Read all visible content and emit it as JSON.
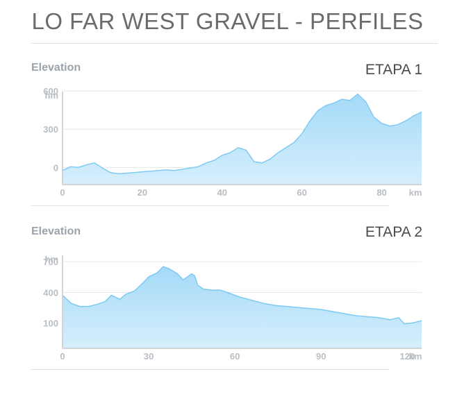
{
  "page": {
    "title": "LO FAR WEST GRAVEL - PERFILES"
  },
  "chart_data": [
    {
      "type": "area",
      "panel_label": "Elevation",
      "title": "ETAPA 1",
      "ylabel": "hm",
      "xlabel": "km",
      "xlim": [
        0,
        90
      ],
      "ylim": [
        -80,
        650
      ],
      "yticks": [
        0,
        300,
        600
      ],
      "xticks": [
        0,
        20,
        40,
        60,
        80
      ],
      "grid": true,
      "fill_color": "#9fd8f7",
      "line_color": "#7ecaf2",
      "series": [
        {
          "x": [
            0,
            2,
            4,
            6,
            8,
            10,
            12,
            14,
            16,
            18,
            20,
            22,
            24,
            26,
            28,
            30,
            32,
            34,
            36,
            38,
            40,
            42,
            44,
            46,
            48,
            50,
            52,
            54,
            56,
            58,
            60,
            62,
            64,
            66,
            68,
            70,
            72,
            74,
            76,
            78,
            80,
            82,
            84,
            86,
            88,
            90
          ],
          "y": [
            30,
            60,
            55,
            75,
            90,
            50,
            15,
            5,
            10,
            15,
            20,
            25,
            30,
            35,
            30,
            40,
            50,
            60,
            90,
            110,
            150,
            170,
            210,
            190,
            100,
            90,
            120,
            170,
            210,
            250,
            320,
            420,
            500,
            540,
            560,
            590,
            580,
            630,
            570,
            450,
            400,
            380,
            390,
            420,
            460,
            490
          ]
        }
      ]
    },
    {
      "type": "area",
      "panel_label": "Elevation",
      "title": "ETAPA 2",
      "ylabel": "hm",
      "xlabel": "km",
      "xlim": [
        0,
        125
      ],
      "ylim": [
        -80,
        830
      ],
      "yticks": [
        100,
        400,
        700
      ],
      "xticks": [
        0,
        30,
        60,
        90,
        120
      ],
      "grid": true,
      "fill_color": "#9fd8f7",
      "line_color": "#7ecaf2",
      "series": [
        {
          "x": [
            0,
            3,
            6,
            9,
            12,
            15,
            17,
            20,
            22,
            25,
            28,
            30,
            33,
            35,
            37,
            40,
            42,
            45,
            46,
            47,
            49,
            52,
            55,
            58,
            62,
            66,
            70,
            74,
            78,
            82,
            86,
            90,
            94,
            98,
            102,
            106,
            110,
            114,
            117,
            119,
            122,
            125
          ],
          "y": [
            440,
            360,
            330,
            330,
            350,
            380,
            440,
            400,
            450,
            480,
            560,
            620,
            660,
            720,
            700,
            650,
            590,
            650,
            630,
            540,
            500,
            490,
            490,
            460,
            420,
            390,
            360,
            340,
            330,
            320,
            310,
            300,
            280,
            260,
            240,
            230,
            220,
            200,
            220,
            160,
            170,
            190
          ]
        }
      ]
    }
  ]
}
